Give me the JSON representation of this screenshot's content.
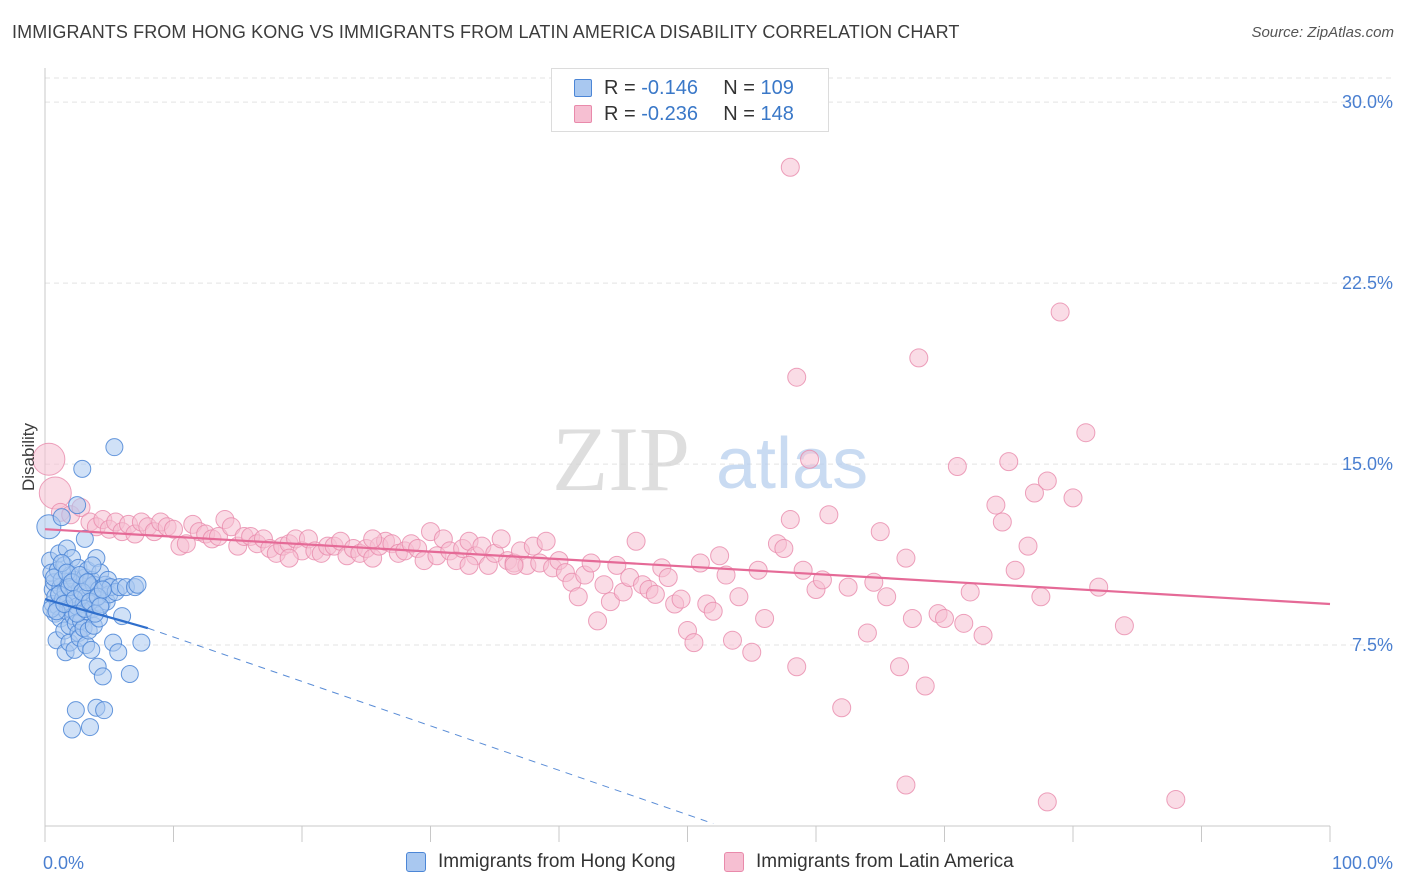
{
  "title": "IMMIGRANTS FROM HONG KONG VS IMMIGRANTS FROM LATIN AMERICA DISABILITY CORRELATION CHART",
  "source": "Source: ZipAtlas.com",
  "watermark": {
    "zip": "ZIP",
    "atlas": "atlas"
  },
  "legend": {
    "rows": [
      {
        "r_label": "R =",
        "r_value": "-0.146",
        "n_label": "N =",
        "n_value": "109"
      },
      {
        "r_label": "R =",
        "r_value": "-0.236",
        "n_label": "N =",
        "n_value": "148"
      }
    ]
  },
  "colors": {
    "series1_fill": "#a9c8f0",
    "series1_stroke": "#4c86d6",
    "series1_line": "#2f6fcc",
    "series2_fill": "#f6bfd2",
    "series2_stroke": "#e98aab",
    "series2_line": "#e56a97",
    "tick_color": "#4a7fd0",
    "grid": "#e3e3e3"
  },
  "chart_data": {
    "type": "scatter",
    "title": "IMMIGRANTS FROM HONG KONG VS IMMIGRANTS FROM LATIN AMERICA DISABILITY CORRELATION CHART",
    "xlabel": "",
    "ylabel": "Disability",
    "xlim": [
      0,
      100
    ],
    "ylim": [
      0,
      31
    ],
    "x_tick_labels": [
      "0.0%",
      "100.0%"
    ],
    "y_ticks": [
      7.5,
      15.0,
      22.5,
      30.0
    ],
    "y_tick_labels": [
      "7.5%",
      "15.0%",
      "22.5%",
      "30.0%"
    ],
    "grid": true,
    "legend_position": "bottom",
    "series": [
      {
        "name": "Immigrants from Hong Kong",
        "r": -0.146,
        "n": 109,
        "trend": {
          "x": [
            0,
            8
          ],
          "y": [
            9.4,
            8.2
          ],
          "dashed_extension_to": [
            52,
            0.1
          ]
        },
        "points": [
          [
            0.3,
            12.4
          ],
          [
            0.4,
            11.0
          ],
          [
            0.5,
            10.5
          ],
          [
            0.6,
            9.8
          ],
          [
            0.6,
            9.2
          ],
          [
            0.7,
            10.1
          ],
          [
            0.8,
            9.5
          ],
          [
            0.8,
            8.8
          ],
          [
            0.9,
            7.7
          ],
          [
            1.0,
            10.6
          ],
          [
            1.0,
            9.1
          ],
          [
            1.1,
            11.3
          ],
          [
            1.2,
            9.9
          ],
          [
            1.2,
            8.6
          ],
          [
            1.3,
            10.2
          ],
          [
            1.3,
            12.8
          ],
          [
            1.4,
            9.4
          ],
          [
            1.5,
            8.1
          ],
          [
            1.5,
            10.8
          ],
          [
            1.6,
            9.7
          ],
          [
            1.6,
            7.2
          ],
          [
            1.7,
            11.5
          ],
          [
            1.7,
            8.9
          ],
          [
            1.8,
            10.0
          ],
          [
            1.8,
            9.3
          ],
          [
            1.9,
            7.6
          ],
          [
            1.9,
            8.3
          ],
          [
            2.0,
            10.4
          ],
          [
            2.0,
            9.0
          ],
          [
            2.1,
            4.0
          ],
          [
            2.1,
            11.1
          ],
          [
            2.2,
            8.7
          ],
          [
            2.2,
            9.6
          ],
          [
            2.3,
            10.2
          ],
          [
            2.3,
            7.3
          ],
          [
            2.4,
            8.4
          ],
          [
            2.4,
            4.8
          ],
          [
            2.5,
            13.3
          ],
          [
            2.5,
            9.1
          ],
          [
            2.6,
            10.7
          ],
          [
            2.6,
            8.0
          ],
          [
            2.7,
            9.8
          ],
          [
            2.7,
            7.8
          ],
          [
            2.8,
            8.5
          ],
          [
            2.9,
            14.8
          ],
          [
            2.9,
            10.0
          ],
          [
            3.0,
            9.2
          ],
          [
            3.0,
            8.2
          ],
          [
            3.1,
            11.9
          ],
          [
            3.1,
            10.3
          ],
          [
            3.2,
            9.5
          ],
          [
            3.2,
            7.5
          ],
          [
            3.3,
            8.9
          ],
          [
            3.3,
            10.6
          ],
          [
            3.4,
            8.1
          ],
          [
            3.5,
            9.9
          ],
          [
            3.5,
            4.1
          ],
          [
            3.6,
            7.3
          ],
          [
            3.6,
            10.2
          ],
          [
            3.7,
            9.0
          ],
          [
            3.8,
            8.3
          ],
          [
            3.8,
            10.0
          ],
          [
            3.9,
            9.4
          ],
          [
            4.0,
            11.1
          ],
          [
            4.0,
            4.9
          ],
          [
            4.1,
            6.6
          ],
          [
            4.2,
            9.8
          ],
          [
            4.2,
            8.6
          ],
          [
            4.3,
            10.5
          ],
          [
            4.4,
            9.2
          ],
          [
            4.5,
            6.2
          ],
          [
            4.6,
            4.8
          ],
          [
            4.7,
            10.0
          ],
          [
            4.8,
            9.3
          ],
          [
            4.9,
            10.2
          ],
          [
            5.0,
            9.6
          ],
          [
            5.1,
            9.9
          ],
          [
            5.3,
            7.6
          ],
          [
            5.4,
            15.7
          ],
          [
            5.5,
            9.7
          ],
          [
            5.7,
            7.2
          ],
          [
            5.8,
            9.9
          ],
          [
            6.0,
            8.7
          ],
          [
            6.3,
            9.9
          ],
          [
            6.6,
            6.3
          ],
          [
            7.0,
            9.9
          ],
          [
            7.2,
            10.0
          ],
          [
            7.5,
            7.6
          ],
          [
            0.5,
            9.0
          ],
          [
            0.7,
            10.3
          ],
          [
            0.9,
            8.9
          ],
          [
            1.1,
            9.6
          ],
          [
            1.3,
            10.9
          ],
          [
            1.5,
            9.2
          ],
          [
            1.7,
            10.5
          ],
          [
            1.9,
            9.9
          ],
          [
            2.1,
            10.1
          ],
          [
            2.3,
            9.4
          ],
          [
            2.5,
            8.8
          ],
          [
            2.7,
            10.4
          ],
          [
            2.9,
            9.7
          ],
          [
            3.1,
            9.0
          ],
          [
            3.3,
            10.1
          ],
          [
            3.5,
            9.3
          ],
          [
            3.7,
            10.8
          ],
          [
            3.9,
            8.8
          ],
          [
            4.1,
            9.5
          ],
          [
            4.3,
            9.1
          ],
          [
            4.5,
            9.8
          ]
        ]
      },
      {
        "name": "Immigrants from Latin America",
        "r": -0.236,
        "n": 148,
        "trend": {
          "x": [
            0,
            100
          ],
          "y": [
            12.3,
            9.2
          ]
        },
        "points": [
          [
            0.3,
            15.2
          ],
          [
            0.8,
            13.8
          ],
          [
            1.2,
            13.0
          ],
          [
            2.0,
            12.9
          ],
          [
            2.8,
            13.2
          ],
          [
            3.5,
            12.6
          ],
          [
            4.0,
            12.4
          ],
          [
            4.5,
            12.7
          ],
          [
            5.0,
            12.3
          ],
          [
            5.5,
            12.6
          ],
          [
            6.0,
            12.2
          ],
          [
            6.5,
            12.5
          ],
          [
            7.0,
            12.1
          ],
          [
            7.5,
            12.6
          ],
          [
            8.0,
            12.4
          ],
          [
            8.5,
            12.2
          ],
          [
            9.0,
            12.6
          ],
          [
            9.5,
            12.4
          ],
          [
            10.0,
            12.3
          ],
          [
            10.5,
            11.6
          ],
          [
            11.0,
            11.7
          ],
          [
            11.5,
            12.5
          ],
          [
            12.0,
            12.2
          ],
          [
            12.5,
            12.1
          ],
          [
            13.0,
            11.9
          ],
          [
            13.5,
            12.0
          ],
          [
            14.0,
            12.7
          ],
          [
            14.5,
            12.4
          ],
          [
            15.0,
            11.6
          ],
          [
            15.5,
            12.0
          ],
          [
            16.0,
            12.0
          ],
          [
            16.5,
            11.7
          ],
          [
            17.0,
            11.9
          ],
          [
            17.5,
            11.5
          ],
          [
            18.0,
            11.3
          ],
          [
            18.5,
            11.6
          ],
          [
            19.0,
            11.7
          ],
          [
            19.5,
            11.9
          ],
          [
            20.0,
            11.4
          ],
          [
            20.5,
            11.9
          ],
          [
            21.0,
            11.4
          ],
          [
            21.5,
            11.3
          ],
          [
            22.0,
            11.6
          ],
          [
            22.5,
            11.6
          ],
          [
            23.0,
            11.8
          ],
          [
            23.5,
            11.2
          ],
          [
            24.0,
            11.5
          ],
          [
            24.5,
            11.3
          ],
          [
            25.0,
            11.5
          ],
          [
            25.5,
            11.1
          ],
          [
            26.0,
            11.6
          ],
          [
            26.5,
            11.8
          ],
          [
            27.0,
            11.7
          ],
          [
            27.5,
            11.3
          ],
          [
            28.0,
            11.4
          ],
          [
            28.5,
            11.7
          ],
          [
            29.0,
            11.5
          ],
          [
            29.5,
            11.0
          ],
          [
            30.0,
            12.2
          ],
          [
            30.5,
            11.2
          ],
          [
            31.0,
            11.9
          ],
          [
            31.5,
            11.4
          ],
          [
            32.0,
            11.0
          ],
          [
            32.5,
            11.5
          ],
          [
            33.0,
            11.8
          ],
          [
            33.5,
            11.2
          ],
          [
            34.0,
            11.6
          ],
          [
            34.5,
            10.8
          ],
          [
            35.0,
            11.3
          ],
          [
            35.5,
            11.9
          ],
          [
            36.0,
            11.0
          ],
          [
            36.5,
            10.9
          ],
          [
            37.0,
            11.4
          ],
          [
            37.5,
            10.8
          ],
          [
            38.0,
            11.6
          ],
          [
            38.5,
            10.9
          ],
          [
            39.0,
            11.8
          ],
          [
            39.5,
            10.7
          ],
          [
            40.0,
            11.0
          ],
          [
            40.5,
            10.5
          ],
          [
            41.0,
            10.1
          ],
          [
            41.5,
            9.5
          ],
          [
            42.0,
            10.4
          ],
          [
            42.5,
            10.9
          ],
          [
            43.0,
            8.5
          ],
          [
            43.5,
            10.0
          ],
          [
            44.0,
            9.3
          ],
          [
            44.5,
            10.8
          ],
          [
            45.0,
            9.7
          ],
          [
            45.5,
            10.3
          ],
          [
            46.0,
            11.8
          ],
          [
            46.5,
            10.0
          ],
          [
            47.0,
            9.8
          ],
          [
            47.5,
            9.6
          ],
          [
            48.0,
            10.7
          ],
          [
            48.5,
            10.3
          ],
          [
            49.0,
            9.2
          ],
          [
            49.5,
            9.4
          ],
          [
            50.0,
            8.1
          ],
          [
            50.5,
            7.6
          ],
          [
            51.0,
            10.9
          ],
          [
            51.5,
            9.2
          ],
          [
            52.0,
            8.9
          ],
          [
            52.5,
            11.2
          ],
          [
            53.0,
            10.4
          ],
          [
            53.5,
            7.7
          ],
          [
            54.0,
            9.5
          ],
          [
            55.0,
            7.2
          ],
          [
            55.5,
            10.6
          ],
          [
            56.0,
            8.6
          ],
          [
            57.0,
            11.7
          ],
          [
            57.5,
            11.5
          ],
          [
            58.0,
            12.7
          ],
          [
            58.5,
            6.6
          ],
          [
            59.0,
            10.6
          ],
          [
            59.5,
            15.2
          ],
          [
            60.0,
            9.8
          ],
          [
            60.5,
            10.2
          ],
          [
            61.0,
            12.9
          ],
          [
            62.0,
            4.9
          ],
          [
            62.5,
            9.9
          ],
          [
            64.0,
            8.0
          ],
          [
            64.5,
            10.1
          ],
          [
            65.0,
            12.2
          ],
          [
            65.5,
            9.5
          ],
          [
            66.5,
            6.6
          ],
          [
            67.0,
            11.1
          ],
          [
            67.5,
            8.6
          ],
          [
            68.0,
            19.4
          ],
          [
            68.5,
            5.8
          ],
          [
            69.5,
            8.8
          ],
          [
            70.0,
            8.6
          ],
          [
            71.0,
            14.9
          ],
          [
            71.5,
            8.4
          ],
          [
            72.0,
            9.7
          ],
          [
            73.0,
            7.9
          ],
          [
            74.0,
            13.3
          ],
          [
            74.5,
            12.6
          ],
          [
            75.0,
            15.1
          ],
          [
            75.5,
            10.6
          ],
          [
            76.5,
            11.6
          ],
          [
            77.0,
            13.8
          ],
          [
            77.5,
            9.5
          ],
          [
            78.0,
            14.3
          ],
          [
            79.0,
            21.3
          ],
          [
            80.0,
            13.6
          ],
          [
            81.0,
            16.3
          ],
          [
            82.0,
            9.9
          ],
          [
            58.0,
            27.3
          ],
          [
            58.5,
            18.6
          ],
          [
            67.0,
            1.7
          ],
          [
            78.0,
            1.0
          ],
          [
            88.0,
            1.1
          ],
          [
            84.0,
            8.3
          ],
          [
            36.5,
            10.8
          ],
          [
            25.5,
            11.9
          ],
          [
            33.0,
            10.8
          ],
          [
            19.0,
            11.1
          ]
        ]
      }
    ]
  }
}
